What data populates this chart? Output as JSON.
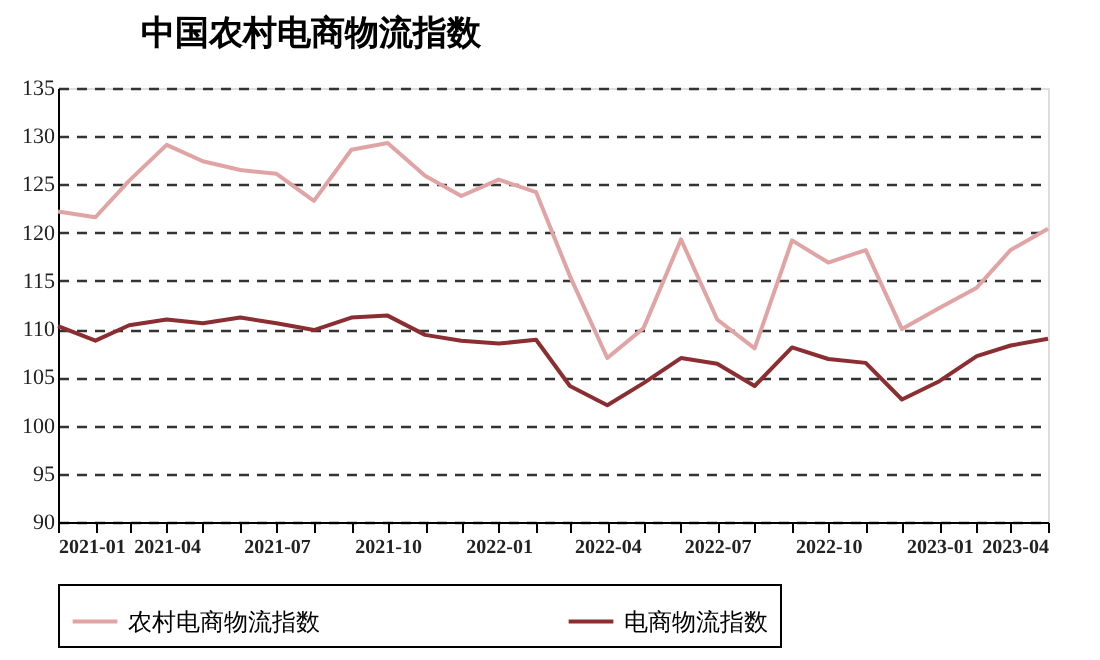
{
  "chart_data": {
    "type": "line",
    "title": "中国农村电商物流指数",
    "x": [
      "2021-01",
      "2021-02",
      "2021-03",
      "2021-04",
      "2021-05",
      "2021-06",
      "2021-07",
      "2021-08",
      "2021-09",
      "2021-10",
      "2021-11",
      "2021-12",
      "2022-01",
      "2022-02",
      "2022-03",
      "2022-04",
      "2022-05",
      "2022-06",
      "2022-07",
      "2022-08",
      "2022-09",
      "2022-10",
      "2022-11",
      "2022-12",
      "2023-01",
      "2023-02",
      "2023-03",
      "2023-04"
    ],
    "series": [
      {
        "name": "农村电商物流指数",
        "color": "#e0a4a4",
        "values": [
          122.2,
          121.6,
          125.4,
          129.1,
          127.4,
          126.5,
          126.1,
          123.3,
          128.6,
          129.3,
          125.9,
          123.8,
          125.5,
          124.2,
          115.5,
          107,
          110.1,
          119.3,
          111,
          108,
          119.2,
          116.9,
          118.2,
          110,
          112.2,
          114.3,
          118.2,
          120.4
        ]
      },
      {
        "name": "电商物流指数",
        "color": "#8b2e32",
        "values": [
          110.3,
          108.8,
          110.4,
          111,
          110.6,
          111.2,
          110.6,
          109.9,
          111.2,
          111.4,
          109.4,
          108.8,
          108.5,
          108.9,
          104.1,
          102.1,
          104.4,
          107,
          106.4,
          104.1,
          108.1,
          106.9,
          106.5,
          102.7,
          104.6,
          107.2,
          108.3,
          109
        ]
      }
    ],
    "xlim": [
      "2021-01",
      "2023-04"
    ],
    "xticks": [
      {
        "value": "2021-01",
        "label": "2021-01"
      },
      {
        "value": "2021-02",
        "label": null
      },
      {
        "value": "2021-03",
        "label": null
      },
      {
        "value": "2021-04",
        "label": "2021-04"
      },
      {
        "value": "2021-05",
        "label": null
      },
      {
        "value": "2021-06",
        "label": null
      },
      {
        "value": "2021-07",
        "label": "2021-07"
      },
      {
        "value": "2021-08",
        "label": null
      },
      {
        "value": "2021-09",
        "label": null
      },
      {
        "value": "2021-10",
        "label": "2021-10"
      },
      {
        "value": "2021-11",
        "label": null
      },
      {
        "value": "2021-12",
        "label": null
      },
      {
        "value": "2022-01",
        "label": "2022-01"
      },
      {
        "value": "2022-02",
        "label": null
      },
      {
        "value": "2022-03",
        "label": null
      },
      {
        "value": "2022-04",
        "label": "2022-04"
      },
      {
        "value": "2022-05",
        "label": null
      },
      {
        "value": "2022-06",
        "label": null
      },
      {
        "value": "2022-07",
        "label": "2022-07"
      },
      {
        "value": "2022-08",
        "label": null
      },
      {
        "value": "2022-09",
        "label": null
      },
      {
        "value": "2022-10",
        "label": "2022-10"
      },
      {
        "value": "2022-11",
        "label": null
      },
      {
        "value": "2022-12",
        "label": null
      },
      {
        "value": "2023-01",
        "label": "2023-01"
      },
      {
        "value": "2023-02",
        "label": null
      },
      {
        "value": "2023-03",
        "label": null
      },
      {
        "value": "2023-04",
        "label": "2023-04"
      }
    ],
    "ylim": [
      90,
      135
    ],
    "yticks": [
      90,
      95,
      100,
      105,
      110,
      115,
      120,
      125,
      130,
      135
    ],
    "grid": "y",
    "legend": "bottom",
    "marker": "none",
    "line_style": "solid"
  }
}
